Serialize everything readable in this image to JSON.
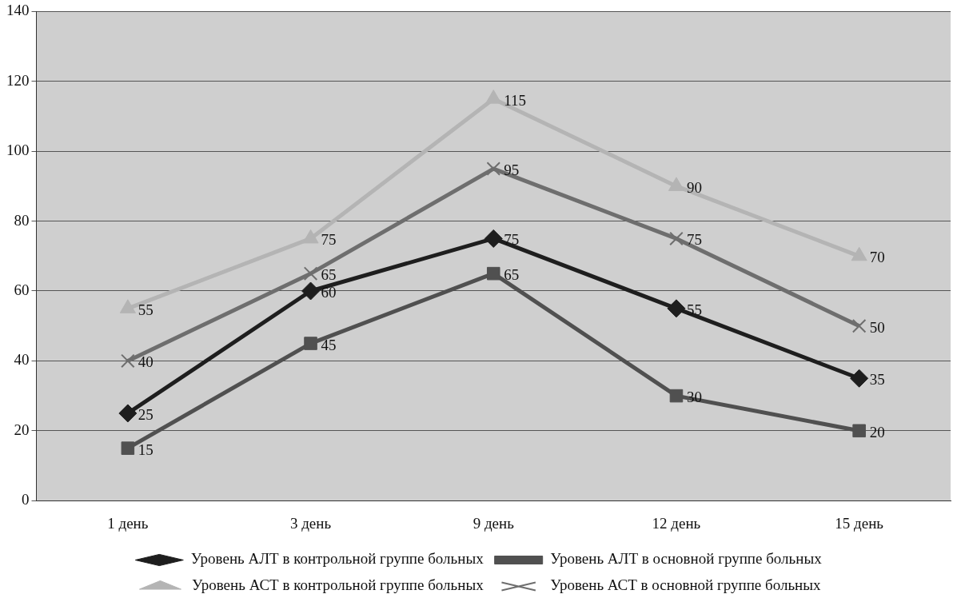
{
  "chart_data": {
    "type": "line",
    "categories": [
      "1 день",
      "3 день",
      "9 день",
      "12 день",
      "15 день"
    ],
    "series": [
      {
        "name": "Уровень АЛТ в контрольной группе больных",
        "color": "#1e1e1e",
        "marker": "diamond",
        "values": [
          25,
          60,
          75,
          55,
          35
        ]
      },
      {
        "name": "Уровень АЛТ в основной группе больных",
        "color": "#505050",
        "marker": "square",
        "values": [
          15,
          45,
          65,
          30,
          20
        ]
      },
      {
        "name": "Уровень АСТ в контрольной группе больных",
        "color": "#b4b4b4",
        "marker": "triangle",
        "values": [
          55,
          75,
          115,
          90,
          70
        ]
      },
      {
        "name": "Уровень АСТ в основной группе больных",
        "color": "#6e6e6e",
        "marker": "cross",
        "values": [
          40,
          65,
          95,
          75,
          50
        ]
      }
    ],
    "ylim": [
      0,
      140
    ],
    "yticks": [
      0,
      20,
      40,
      60,
      80,
      100,
      120,
      140
    ],
    "grid": "y",
    "legend": "bottom",
    "data_labels": true,
    "line_style": "solid"
  }
}
